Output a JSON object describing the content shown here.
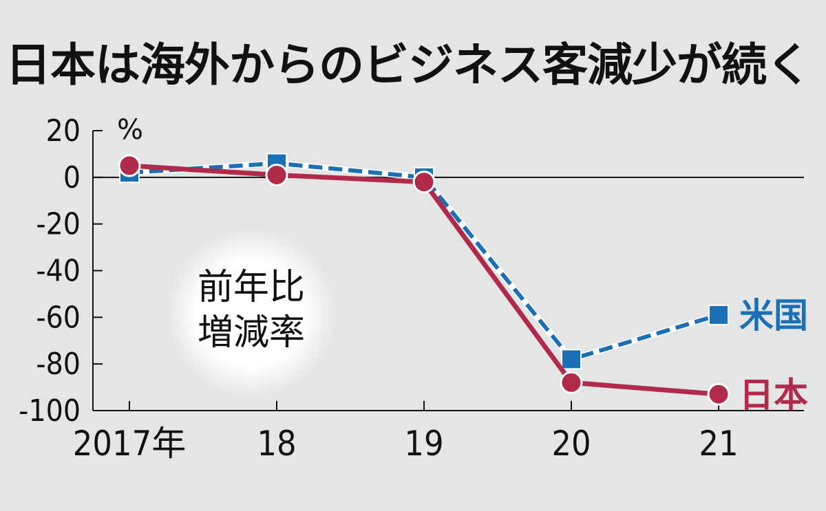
{
  "chart_data": {
    "type": "line",
    "title": "日本は海外からのビジネス客減少が続く",
    "ylabel": "%",
    "note": [
      "前年比",
      "増減率"
    ],
    "categories": [
      "2017年",
      "18",
      "19",
      "20",
      "21"
    ],
    "ylim": [
      -100,
      20
    ],
    "yticks": [
      20,
      0,
      -20,
      -40,
      -60,
      -80,
      -100
    ],
    "series": [
      {
        "name": "米国",
        "color": "#1a6fb5",
        "marker": "square",
        "dashed": true,
        "values": [
          2,
          6,
          0,
          -78,
          -59
        ]
      },
      {
        "name": "日本",
        "color": "#b22a4a",
        "marker": "circle",
        "dashed": false,
        "values": [
          5,
          1,
          -2,
          -88,
          -93
        ]
      }
    ],
    "grid": false,
    "legend": "right-of-lines"
  }
}
